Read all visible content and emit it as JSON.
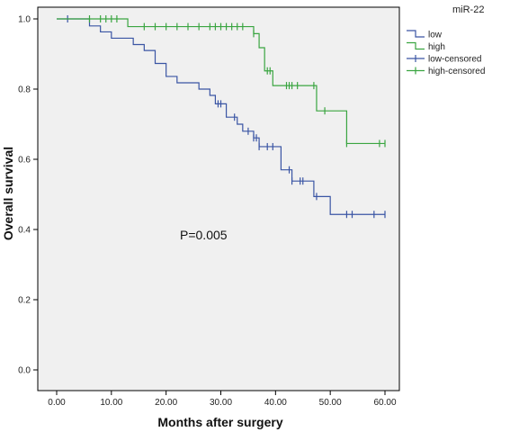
{
  "chart_data": {
    "type": "line",
    "subtype": "kaplan-meier",
    "xlabel": "Months after surgery",
    "ylabel": "Overall survival",
    "xlim": [
      0,
      60
    ],
    "ylim": [
      0,
      1.0
    ],
    "x_ticks": [
      0,
      10,
      20,
      30,
      40,
      50,
      60
    ],
    "x_tick_labels": [
      "0.00",
      "10.00",
      "20.00",
      "30.00",
      "40.00",
      "50.00",
      "60.00"
    ],
    "y_ticks": [
      0,
      0.2,
      0.4,
      0.6,
      0.8,
      1.0
    ],
    "y_tick_labels": [
      "0.0",
      "0.2",
      "0.4",
      "0.6",
      "0.8",
      "1.0"
    ],
    "grid": false,
    "annotation": "P=0.005",
    "legend": {
      "title": "miR-22",
      "position": "right",
      "entries": [
        "low",
        "high",
        "low-censored",
        "high-censored"
      ]
    },
    "series": [
      {
        "name": "low",
        "color": "#3a55a4",
        "steps": [
          [
            0,
            1.0
          ],
          [
            6,
            0.98
          ],
          [
            8,
            0.963
          ],
          [
            10,
            0.945
          ],
          [
            14,
            0.927
          ],
          [
            16,
            0.91
          ],
          [
            18,
            0.873
          ],
          [
            20,
            0.836
          ],
          [
            22,
            0.818
          ],
          [
            26,
            0.8
          ],
          [
            28,
            0.782
          ],
          [
            29,
            0.758
          ],
          [
            31,
            0.72
          ],
          [
            33,
            0.7
          ],
          [
            34,
            0.68
          ],
          [
            36,
            0.661
          ],
          [
            37,
            0.636
          ],
          [
            41,
            0.57
          ],
          [
            43,
            0.538
          ],
          [
            47,
            0.494
          ],
          [
            50,
            0.443
          ],
          [
            60,
            0.443
          ]
        ],
        "censored": [
          2,
          29.5,
          30,
          32.5,
          35,
          36,
          36.5,
          37,
          38.5,
          39.5,
          42.5,
          43,
          44.5,
          45,
          47.5,
          53,
          54,
          58,
          60
        ]
      },
      {
        "name": "high",
        "color": "#3aa541",
        "steps": [
          [
            0,
            1.0
          ],
          [
            13,
            0.978
          ],
          [
            36,
            0.958
          ],
          [
            37,
            0.918
          ],
          [
            38,
            0.852
          ],
          [
            39.5,
            0.81
          ],
          [
            47.5,
            0.738
          ],
          [
            53,
            0.645
          ],
          [
            60,
            0.645
          ]
        ],
        "censored": [
          6,
          8,
          9,
          10,
          11,
          16,
          18,
          20,
          22,
          24,
          26,
          28,
          29,
          30,
          31,
          32,
          33,
          34,
          36,
          38.5,
          39,
          42,
          42.5,
          43,
          44,
          47,
          49,
          53,
          59,
          60
        ]
      }
    ]
  }
}
